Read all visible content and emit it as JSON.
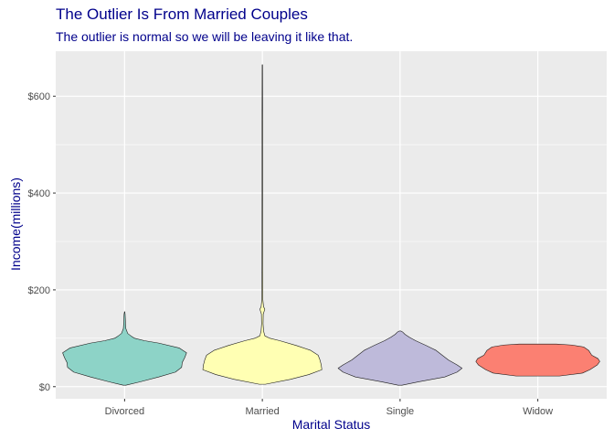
{
  "chart_data": {
    "type": "violin",
    "title": "The Outlier Is From Married Couples",
    "subtitle": "The outlier is normal so we will be leaving it like that.",
    "xlabel": "Marital Status",
    "ylabel": "Income(millions)",
    "categories": [
      "Divorced",
      "Married",
      "Single",
      "Widow"
    ],
    "ylim": [
      -25,
      693
    ],
    "y_ticks": [
      0,
      200,
      400,
      600
    ],
    "y_tick_labels": [
      "$0",
      "$200",
      "$400",
      "$600"
    ],
    "grid": true,
    "panel_background": "#ebebeb",
    "title_color": "#00008b",
    "violins": [
      {
        "category": "Divorced",
        "fill": "#8dd3c7",
        "min": 3,
        "max": 155,
        "profile": [
          [
            3,
            0.02
          ],
          [
            10,
            0.25
          ],
          [
            20,
            0.55
          ],
          [
            30,
            0.82
          ],
          [
            40,
            0.92
          ],
          [
            50,
            0.93
          ],
          [
            60,
            0.97
          ],
          [
            70,
            1.0
          ],
          [
            80,
            0.88
          ],
          [
            90,
            0.55
          ],
          [
            95,
            0.32
          ],
          [
            100,
            0.16
          ],
          [
            105,
            0.1
          ],
          [
            110,
            0.05
          ],
          [
            120,
            0.02
          ],
          [
            130,
            0.015
          ],
          [
            140,
            0.012
          ],
          [
            150,
            0.008
          ],
          [
            155,
            0.002
          ]
        ]
      },
      {
        "category": "Married",
        "fill": "#ffffb3",
        "min": 5,
        "max": 665,
        "profile": [
          [
            5,
            0.05
          ],
          [
            15,
            0.45
          ],
          [
            25,
            0.75
          ],
          [
            35,
            0.96
          ],
          [
            45,
            0.95
          ],
          [
            55,
            0.93
          ],
          [
            65,
            0.9
          ],
          [
            75,
            0.78
          ],
          [
            85,
            0.55
          ],
          [
            95,
            0.28
          ],
          [
            100,
            0.12
          ],
          [
            105,
            0.04
          ],
          [
            115,
            0.02
          ],
          [
            130,
            0.012
          ],
          [
            150,
            0.015
          ],
          [
            160,
            0.04
          ],
          [
            165,
            0.02
          ],
          [
            180,
            0.008
          ],
          [
            250,
            0.006
          ],
          [
            400,
            0.005
          ],
          [
            550,
            0.005
          ],
          [
            665,
            0.003
          ]
        ]
      },
      {
        "category": "Single",
        "fill": "#bebada",
        "min": 3,
        "max": 115,
        "profile": [
          [
            3,
            0.03
          ],
          [
            10,
            0.3
          ],
          [
            20,
            0.72
          ],
          [
            30,
            0.92
          ],
          [
            38,
            1.0
          ],
          [
            45,
            0.92
          ],
          [
            55,
            0.78
          ],
          [
            65,
            0.68
          ],
          [
            75,
            0.58
          ],
          [
            85,
            0.42
          ],
          [
            95,
            0.25
          ],
          [
            102,
            0.15
          ],
          [
            108,
            0.08
          ],
          [
            113,
            0.04
          ],
          [
            115,
            0.01
          ]
        ]
      },
      {
        "category": "Widow",
        "fill": "#fb8072",
        "min": 22,
        "max": 88,
        "profile": [
          [
            22,
            0.35
          ],
          [
            28,
            0.72
          ],
          [
            35,
            0.84
          ],
          [
            45,
            0.96
          ],
          [
            52,
            1.0
          ],
          [
            58,
            0.97
          ],
          [
            65,
            0.87
          ],
          [
            75,
            0.82
          ],
          [
            82,
            0.74
          ],
          [
            86,
            0.55
          ],
          [
            88,
            0.3
          ]
        ]
      }
    ]
  }
}
